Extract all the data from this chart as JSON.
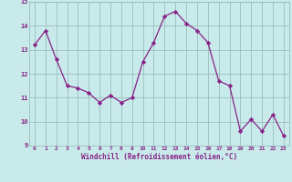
{
  "x": [
    0,
    1,
    2,
    3,
    4,
    5,
    6,
    7,
    8,
    9,
    10,
    11,
    12,
    13,
    14,
    15,
    16,
    17,
    18,
    19,
    20,
    21,
    22,
    23
  ],
  "y": [
    13.2,
    13.8,
    12.6,
    11.5,
    11.4,
    11.2,
    10.8,
    11.1,
    10.8,
    11.0,
    12.5,
    13.3,
    14.4,
    14.6,
    14.1,
    13.8,
    13.3,
    11.7,
    11.5,
    9.6,
    10.1,
    9.6,
    10.3,
    9.4
  ],
  "line_color": "#882288",
  "marker": "D",
  "marker_size": 2.2,
  "bg_color": "#c8eaea",
  "grid_color": "#9bbdbd",
  "xlabel": "Windchill (Refroidissement éolien,°C)",
  "xlabel_color": "#882288",
  "tick_color": "#882288",
  "ylim": [
    9,
    15
  ],
  "xlim": [
    -0.5,
    23.5
  ],
  "yticks": [
    9,
    10,
    11,
    12,
    13,
    14,
    15
  ],
  "xticks": [
    0,
    1,
    2,
    3,
    4,
    5,
    6,
    7,
    8,
    9,
    10,
    11,
    12,
    13,
    14,
    15,
    16,
    17,
    18,
    19,
    20,
    21,
    22,
    23
  ]
}
